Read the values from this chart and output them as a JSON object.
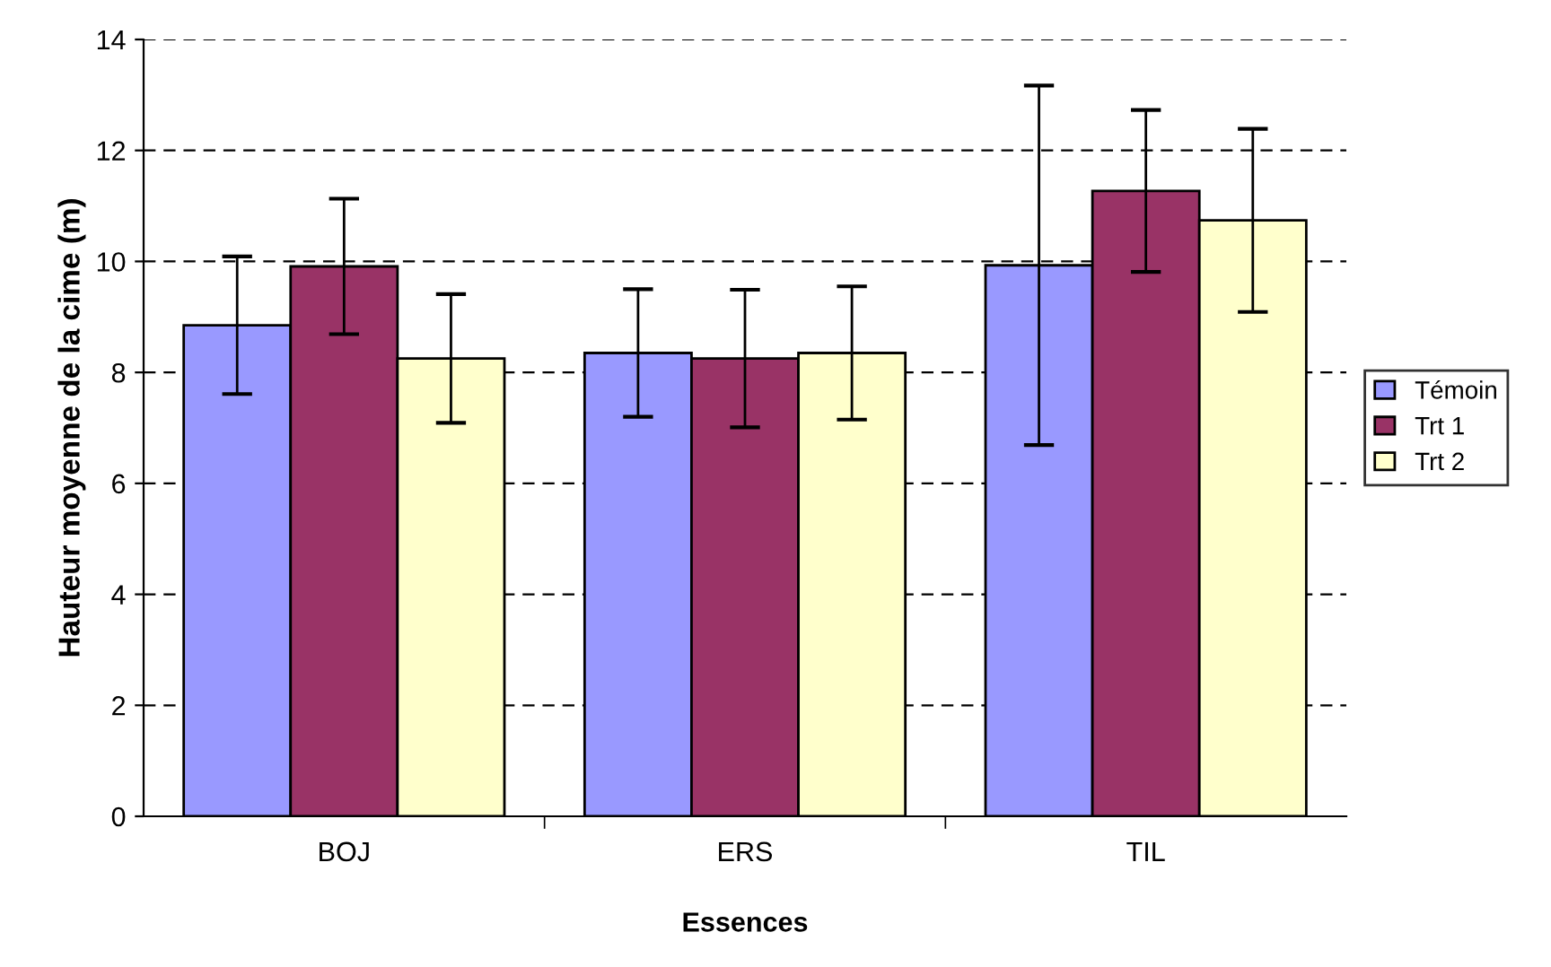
{
  "chart_data": {
    "type": "bar",
    "xlabel": "Essences",
    "ylabel": "Hauteur moyenne de la cime (m)",
    "categories": [
      "BOJ",
      "ERS",
      "TIL"
    ],
    "series": [
      {
        "name": "Témoin",
        "color": "#9999ff",
        "values": [
          8.85,
          8.35,
          9.93
        ],
        "errors": [
          1.24,
          1.15,
          3.24
        ]
      },
      {
        "name": "Trt 1",
        "color": "#993366",
        "values": [
          9.91,
          8.25,
          11.27
        ],
        "errors": [
          1.22,
          1.24,
          1.46
        ]
      },
      {
        "name": "Trt 2",
        "color": "#ffffcc",
        "values": [
          8.25,
          8.35,
          10.74
        ],
        "errors": [
          1.16,
          1.2,
          1.65
        ]
      }
    ],
    "ylim": [
      0,
      14
    ],
    "yticks": [
      0,
      2,
      4,
      6,
      8,
      10,
      12,
      14
    ],
    "grid": "y",
    "legend": "right"
  }
}
